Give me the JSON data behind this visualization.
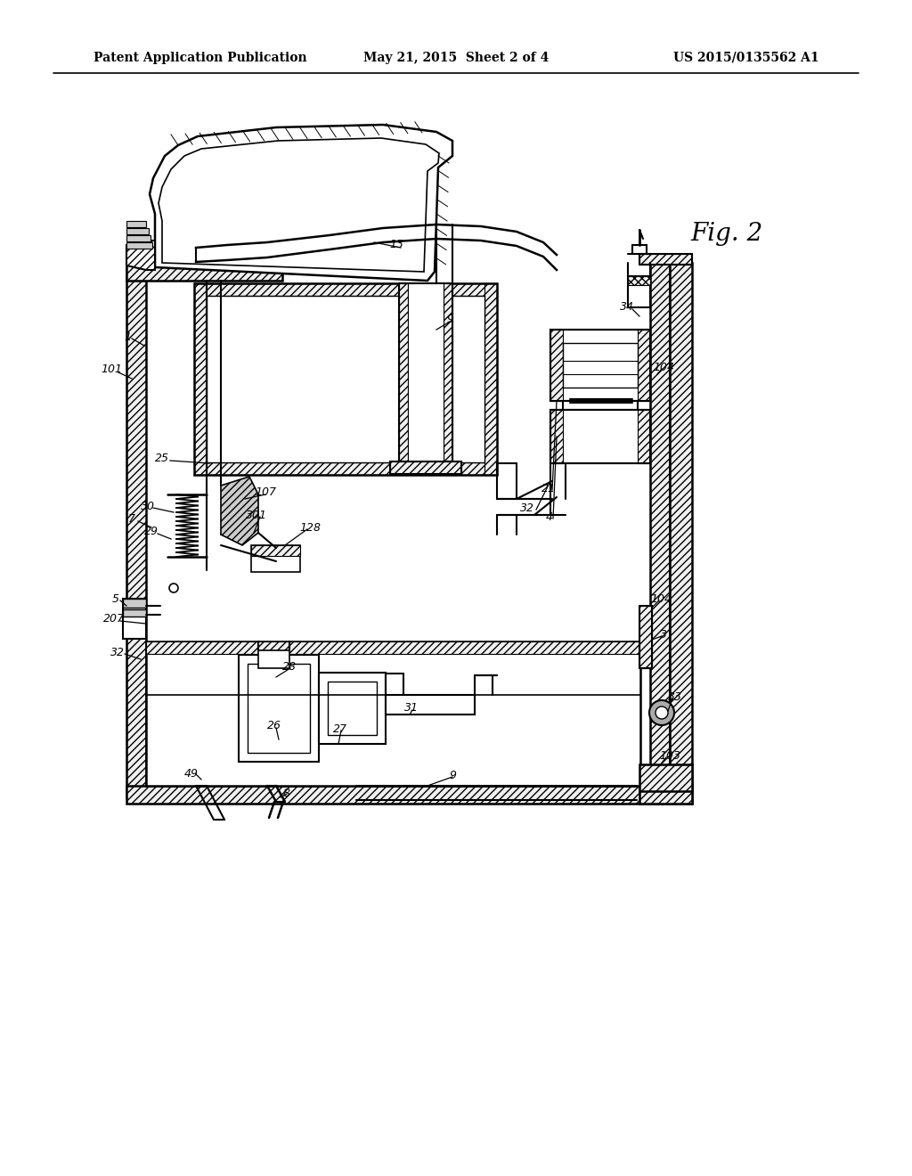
{
  "bg_color": "#ffffff",
  "header_left": "Patent Application Publication",
  "header_mid": "May 21, 2015  Sheet 2 of 4",
  "header_right": "US 2015/0135562 A1",
  "fig_label": "Fig. 2"
}
